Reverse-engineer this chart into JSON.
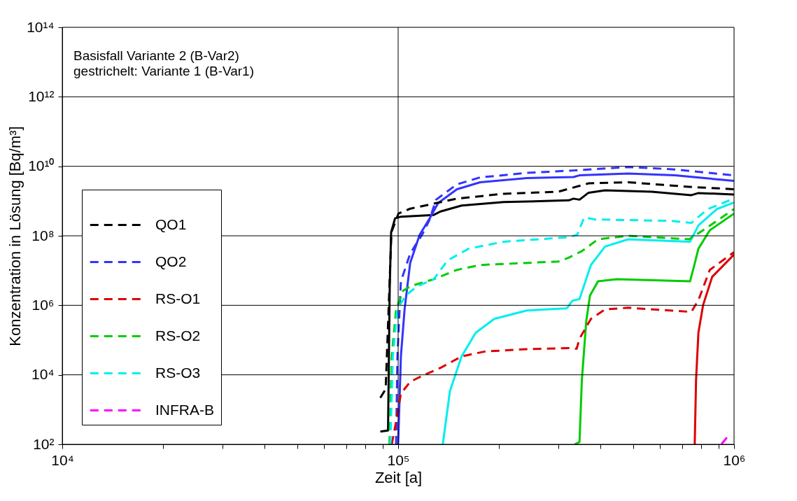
{
  "chart_data": {
    "type": "line",
    "xlabel": "Zeit [a]",
    "ylabel": "Konzentration in Lösung [Bq/m³]",
    "annotations": [
      "Basisfall Variante 2 (B-Var2)",
      "gestrichelt: Variante 1 (B-Var1)"
    ],
    "log": "xy",
    "grid": true,
    "legend": "bottom left",
    "xlim": [
      10000,
      1000000
    ],
    "ylim": [
      100,
      100000000000000
    ],
    "xticks": [
      {
        "value": 10000,
        "label": "10⁴"
      },
      {
        "value": 20000,
        "label": null
      },
      {
        "value": 30000,
        "label": null
      },
      {
        "value": 40000,
        "label": null
      },
      {
        "value": 50000,
        "label": null
      },
      {
        "value": 60000,
        "label": null
      },
      {
        "value": 70000,
        "label": null
      },
      {
        "value": 80000,
        "label": null
      },
      {
        "value": 90000,
        "label": null
      },
      {
        "value": 100000,
        "label": "10⁵"
      },
      {
        "value": 200000,
        "label": null
      },
      {
        "value": 300000,
        "label": null
      },
      {
        "value": 400000,
        "label": null
      },
      {
        "value": 500000,
        "label": null
      },
      {
        "value": 600000,
        "label": null
      },
      {
        "value": 700000,
        "label": null
      },
      {
        "value": 800000,
        "label": null
      },
      {
        "value": 900000,
        "label": null
      },
      {
        "value": 1000000,
        "label": "10⁶"
      }
    ],
    "yticks": [
      {
        "value": 100,
        "label": "10²"
      },
      {
        "value": 10000,
        "label": "10⁴"
      },
      {
        "value": 1000000,
        "label": "10⁶"
      },
      {
        "value": 100000000,
        "label": "10⁸"
      },
      {
        "value": 10000000000,
        "label": "10¹⁰"
      },
      {
        "value": 1000000000000,
        "label": "10¹²"
      },
      {
        "value": 100000000000000,
        "label": "10¹⁴"
      }
    ],
    "series": [
      {
        "name": "QO1",
        "color": "#000000",
        "line_style": "dashed",
        "x": [
          88500,
          91800,
          95500,
          100200,
          108600,
          149600,
          206100,
          300000,
          369000,
          484200,
          734500,
          1000000
        ],
        "values": [
          2190,
          3890,
          125900000,
          436500000,
          602600000,
          1175000000,
          1622000000,
          1862000000,
          3236000000,
          3467000000,
          2570000000,
          2188000000
        ]
      },
      {
        "name": "QO2",
        "color": "#3333ff",
        "line_style": "dashed",
        "x": [
          98600,
          99500,
          101900,
          108600,
          117800,
          123600,
          129700,
          149600,
          175400,
          241500,
          332700,
          484200,
          666800,
          1000000
        ],
        "values": [
          100,
          33900,
          4898000,
          30900000,
          107200000,
          269200000,
          1096000000,
          3020000000,
          4786000000,
          6457000000,
          7586000000,
          9550000000,
          8128000000,
          5495000000
        ]
      },
      {
        "name": "RS-O1",
        "color": "#dd0000",
        "line_style": "dashed",
        "x": [
          95700,
          98600,
          101900,
          108600,
          119700,
          133700,
          154500,
          181100,
          241500,
          319900,
          340000,
          346700,
          374900,
          413000,
          484200,
          746400,
          783400,
          847200,
          1000000
        ],
        "values": [
          100,
          447,
          2884,
          6310,
          10000,
          15850,
          33900,
          46770,
          54950,
          58880,
          56230,
          109600,
          407400,
          758600,
          851100,
          645700,
          1413000,
          10470000,
          33880000
        ]
      },
      {
        "name": "RS-O2",
        "color": "#00cc00",
        "line_style": "dashed",
        "x": [
          94200,
          95700,
          98600,
          103500,
          108600,
          127600,
          149600,
          175400,
          300000,
          320000,
          352400,
          393600,
          484200,
          734500,
          809100,
          1000000
        ],
        "values": [
          100,
          33900,
          758600,
          2630000,
          3548000,
          5623000,
          10470000,
          14450000,
          18200000,
          22910000,
          36310000,
          79430000,
          100000000,
          79430000,
          144500000,
          588800000
        ]
      },
      {
        "name": "RS-O3",
        "color": "#00eeee",
        "line_style": "dashed",
        "x": [
          94800,
          96400,
          99500,
          105200,
          114000,
          127600,
          140300,
          162200,
          206100,
          322100,
          341300,
          358100,
          387000,
          645700,
          746400,
          835600,
          1000000
        ],
        "values": [
          100,
          33900,
          758600,
          1905000,
          3548000,
          5623000,
          19500000,
          42660000,
          67610000,
          91200000,
          107200000,
          338800000,
          295100000,
          269200000,
          234400000,
          588800000,
          1175000000
        ]
      },
      {
        "name": "INFRA-B",
        "color": "#ff00ff",
        "line_style": "dashed",
        "x": [
          918300,
          957200
        ],
        "values": [
          102,
          166
        ]
      },
      {
        "color": "#000000",
        "line_style": "solid",
        "x": [
          88500,
          93300,
          94400,
          95300,
          97900,
          101900,
          127600,
          133700,
          154500,
          206100,
          322100,
          332700,
          346700,
          368900,
          413000,
          568900,
          746400,
          783400,
          1000000
        ],
        "values": [
          234,
          251,
          3548000,
          125900000,
          316200000,
          354800000,
          398100000,
          501200000,
          741300000,
          933300000,
          1047000000,
          1175000000,
          1096000000,
          1738000000,
          2042000000,
          1862000000,
          1479000000,
          1698000000,
          1549000000
        ]
      },
      {
        "color": "#3333ff",
        "line_style": "solid",
        "x": [
          100000,
          101900,
          104500,
          108600,
          115900,
          123600,
          131500,
          149600,
          175400,
          241500,
          332700,
          346700,
          484200,
          666800,
          1000000
        ],
        "values": [
          100,
          33900,
          758600,
          16600000,
          107200000,
          295100000,
          871000000,
          2188000000,
          3467000000,
          4571000000,
          4898000000,
          5495000000,
          6166000000,
          5495000000,
          3802000000
        ]
      },
      {
        "color": "#dd0000",
        "line_style": "solid",
        "x": [
          763800,
          770900,
          783400,
          809100,
          860900,
          1000000
        ],
        "values": [
          100,
          7244,
          162200,
          1023000,
          6607000,
          28840000
        ]
      },
      {
        "color": "#00cc00",
        "line_style": "solid",
        "x": [
          335700,
          346700,
          352400,
          363100,
          372400,
          393600,
          447700,
          739600,
          758600,
          783400,
          847200,
          1000000
        ],
        "values": [
          100,
          117,
          7244,
          346700,
          1905000,
          4898000,
          5623000,
          4898000,
          12300000,
          42660000,
          144500000,
          436500000
        ]
      },
      {
        "color": "#00eeee",
        "line_style": "solid",
        "x": [
          135800,
          142600,
          154500,
          170200,
          193200,
          241500,
          300000,
          317000,
          320000,
          330000,
          346700,
          374900,
          413000,
          484200,
          739600,
          783400,
          889200,
          1000000
        ],
        "values": [
          100,
          3388,
          33900,
          162200,
          407400,
          707900,
          794300,
          812800,
          891300,
          1349000,
          1514000,
          14450000,
          48980000,
          79430000,
          67610000,
          199500000,
          588800000,
          912000000
        ]
      }
    ]
  }
}
